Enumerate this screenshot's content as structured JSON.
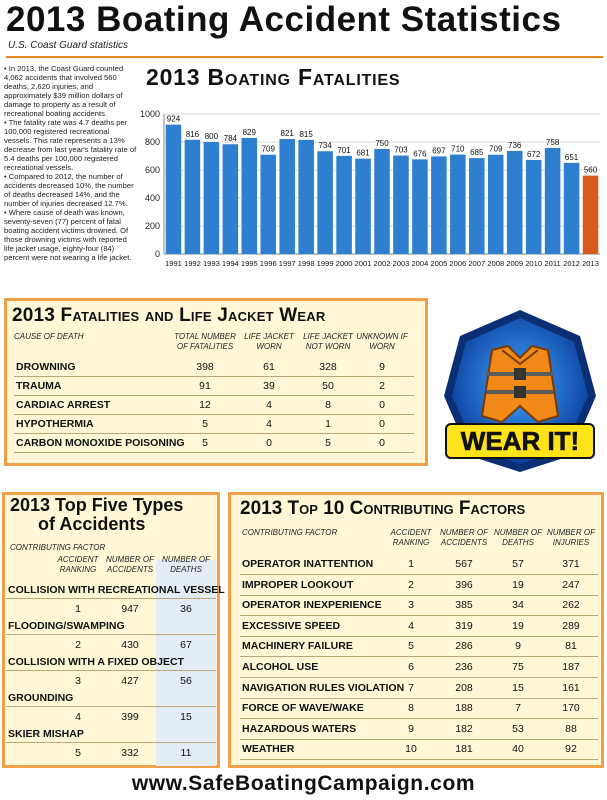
{
  "header": {
    "title": "2013 Boating Accident Statistics",
    "subtitle": "U.S. Coast Guard statistics"
  },
  "intro": [
    "• In 2013, the Coast Guard counted 4,062 accidents that involved 560 deaths, 2,620 injuries, and approximately $39 million dollars of damage to property as a result of recreational boating accidents.",
    "• The fatality rate was 4.7 deaths per 100,000 registered recreational vessels. This rate represents a 13% decrease from last year's fatality rate of 5.4 deaths per 100,000 registered recreational vessels.",
    "• Compared to 2012, the number of accidents decreased 10%, the number of deaths decreased 14%, and the number of injuries decreased 12.7%.",
    "• Where cause of death was known, seventy-seven (77) percent of fatal boating accident victims drowned. Of those drowning victims with reported life jacket usage, eighty-four (84) percent were not wearing a life jacket."
  ],
  "chart_data": {
    "type": "bar",
    "title": "2013 Boating Fatalities",
    "categories": [
      "1991",
      "1992",
      "1993",
      "1994",
      "1995",
      "1996",
      "1997",
      "1998",
      "1999",
      "2000",
      "2001",
      "2002",
      "2003",
      "2004",
      "2005",
      "2006",
      "2007",
      "2008",
      "2009",
      "2010",
      "2011",
      "2012",
      "2013"
    ],
    "values": [
      924,
      816,
      800,
      784,
      829,
      709,
      821,
      815,
      734,
      701,
      681,
      750,
      703,
      676,
      697,
      710,
      685,
      709,
      736,
      672,
      758,
      651,
      560
    ],
    "ylim": [
      0,
      1000
    ],
    "yticks": [
      "0",
      "200",
      "400",
      "600",
      "800",
      "1000"
    ],
    "grid": true,
    "colors": {
      "bar": "#2e7fd0",
      "highlight": "#d65a1c",
      "grid": "#d9d9d9"
    }
  },
  "fatalities": {
    "title": "2013 Fatalities and Life Jacket Wear",
    "headers": [
      "CAUSE OF DEATH",
      "TOTAL NUMBER OF FATALITIES",
      "LIFE JACKET WORN",
      "LIFE JACKET NOT WORN",
      "UNKNOWN IF WORN"
    ],
    "rows": [
      {
        "cause": "DROWNING",
        "total": "398",
        "worn": "61",
        "not_worn": "328",
        "unknown": "9"
      },
      {
        "cause": "TRAUMA",
        "total": "91",
        "worn": "39",
        "not_worn": "50",
        "unknown": "2"
      },
      {
        "cause": "CARDIAC ARREST",
        "total": "12",
        "worn": "4",
        "not_worn": "8",
        "unknown": "0"
      },
      {
        "cause": "HYPOTHERMIA",
        "total": "5",
        "worn": "4",
        "not_worn": "1",
        "unknown": "0"
      },
      {
        "cause": "CARBON MONOXIDE POISONING",
        "total": "5",
        "worn": "0",
        "not_worn": "5",
        "unknown": "0"
      }
    ]
  },
  "badge": {
    "text": "WEAR IT!"
  },
  "accidents": {
    "title_line1": "2013 Top Five Types",
    "title_line2": "of Accidents",
    "header_factor": "CONTRIBUTING FACTOR",
    "headers": [
      "ACCIDENT RANKING",
      "NUMBER OF ACCIDENTS",
      "NUMBER OF DEATHS"
    ],
    "rows": [
      {
        "name": "COLLISION WITH RECREATIONAL VESSEL",
        "rank": "1",
        "accidents": "947",
        "deaths": "36"
      },
      {
        "name": "FLOODING/SWAMPING",
        "rank": "2",
        "accidents": "430",
        "deaths": "67"
      },
      {
        "name": "COLLISION WITH A FIXED OBJECT",
        "rank": "3",
        "accidents": "427",
        "deaths": "56"
      },
      {
        "name": "GROUNDING",
        "rank": "4",
        "accidents": "399",
        "deaths": "15"
      },
      {
        "name": "SKIER MISHAP",
        "rank": "5",
        "accidents": "332",
        "deaths": "11"
      }
    ]
  },
  "factors": {
    "title": "2013 Top 10 Contributing Factors",
    "headers": [
      "CONTRIBUTING FACTOR",
      "ACCIDENT RANKING",
      "NUMBER OF ACCIDENTS",
      "NUMBER OF DEATHS",
      "NUMBER OF INJURIES"
    ],
    "rows": [
      {
        "name": "OPERATOR INATTENTION",
        "rank": "1",
        "accidents": "567",
        "deaths": "57",
        "injuries": "371"
      },
      {
        "name": "IMPROPER LOOKOUT",
        "rank": "2",
        "accidents": "396",
        "deaths": "19",
        "injuries": "247"
      },
      {
        "name": "OPERATOR INEXPERIENCE",
        "rank": "3",
        "accidents": "385",
        "deaths": "34",
        "injuries": "262"
      },
      {
        "name": "EXCESSIVE SPEED",
        "rank": "4",
        "accidents": "319",
        "deaths": "19",
        "injuries": "289"
      },
      {
        "name": "MACHINERY FAILURE",
        "rank": "5",
        "accidents": "286",
        "deaths": "9",
        "injuries": "81"
      },
      {
        "name": "ALCOHOL USE",
        "rank": "6",
        "accidents": "236",
        "deaths": "75",
        "injuries": "187"
      },
      {
        "name": "NAVIGATION RULES VIOLATION",
        "rank": "7",
        "accidents": "208",
        "deaths": "15",
        "injuries": "161"
      },
      {
        "name": "FORCE OF WAVE/WAKE",
        "rank": "8",
        "accidents": "188",
        "deaths": "7",
        "injuries": "170"
      },
      {
        "name": "HAZARDOUS WATERS",
        "rank": "9",
        "accidents": "182",
        "deaths": "53",
        "injuries": "88"
      },
      {
        "name": "WEATHER",
        "rank": "10",
        "accidents": "181",
        "deaths": "40",
        "injuries": "92"
      }
    ]
  },
  "footer": {
    "url": "www.SafeBoatingCampaign.com"
  }
}
